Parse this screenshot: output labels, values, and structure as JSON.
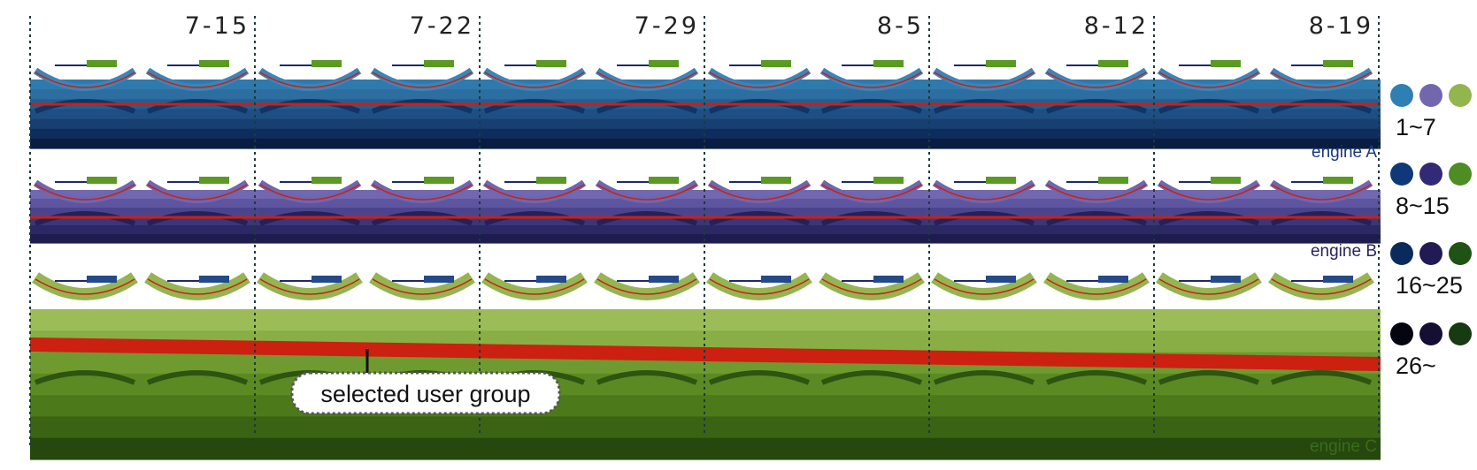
{
  "dates": [
    "7-15",
    "7-22",
    "7-29",
    "8-5",
    "8-12",
    "8-19"
  ],
  "engines": [
    {
      "label": "engine A",
      "color": "#1a3a78",
      "bands": [
        "#2f79ad",
        "#2c6ea0",
        "#245d92",
        "#1e4f84",
        "#183f72",
        "#0f2d5c",
        "#091d42"
      ],
      "arc": "#3c84b8",
      "dark_arc": "#123365"
    },
    {
      "label": "engine B",
      "color": "#2a2360",
      "bands": [
        "#7268b0",
        "#5e55a0",
        "#4b448d",
        "#3b367a",
        "#2c2866",
        "#1e1b4f"
      ],
      "arc": "#6f66ae",
      "dark_arc": "#262058"
    },
    {
      "label": "engine C",
      "color": "#3a6d1a",
      "bands": [
        "#9cbc58",
        "#8aae46",
        "#6f9a30",
        "#5c8a22",
        "#4c7a1a",
        "#3a6414",
        "#26480e"
      ],
      "arc": "#95b452",
      "dark_arc": "#2e5412"
    }
  ],
  "legend": [
    {
      "label": "1~7",
      "colors": [
        "#2f7fb5",
        "#7267ad",
        "#93b54e"
      ]
    },
    {
      "label": "8~15",
      "colors": [
        "#0f3878",
        "#322a74",
        "#4e8c24"
      ]
    },
    {
      "label": "16~25",
      "colors": [
        "#0b2a5c",
        "#221a55",
        "#1f5214"
      ]
    },
    {
      "label": "26~",
      "colors": [
        "#050510",
        "#140f33",
        "#163b10"
      ]
    }
  ],
  "highlight_color": "#cc2010",
  "callout_text": "selected user group"
}
